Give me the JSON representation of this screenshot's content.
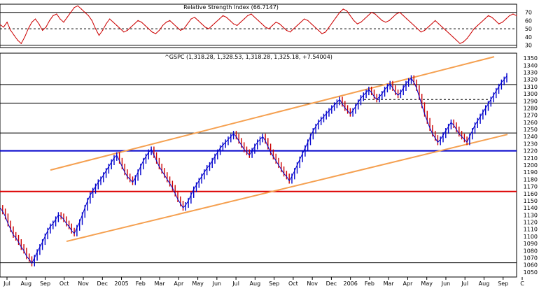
{
  "chart_data": [
    {
      "type": "line",
      "title": "Relative Strength Index (66.7147)",
      "y_ticks": [
        30,
        40,
        50,
        60,
        70
      ],
      "ylim": [
        27,
        80
      ],
      "reference_lines": {
        "upper": 70,
        "middle": 50,
        "lower": 30
      },
      "colors": {
        "series": "#cc0000",
        "reference": "#000000"
      },
      "series": [
        {
          "values": [
            55,
            52,
            58,
            48,
            42,
            36,
            32,
            40,
            50,
            58,
            62,
            56,
            48,
            52,
            60,
            66,
            68,
            62,
            58,
            64,
            70,
            76,
            78,
            74,
            70,
            66,
            60,
            50,
            42,
            48,
            56,
            62,
            58,
            54,
            50,
            46,
            48,
            52,
            56,
            60,
            58,
            54,
            50,
            46,
            44,
            48,
            54,
            58,
            60,
            56,
            52,
            48,
            50,
            56,
            62,
            64,
            60,
            56,
            52,
            50,
            54,
            58,
            62,
            66,
            64,
            60,
            56,
            54,
            58,
            62,
            66,
            68,
            64,
            60,
            56,
            52,
            50,
            54,
            58,
            56,
            52,
            48,
            46,
            50,
            54,
            58,
            62,
            60,
            56,
            52,
            48,
            44,
            46,
            52,
            58,
            64,
            70,
            74,
            72,
            66,
            60,
            56,
            58,
            62,
            66,
            70,
            68,
            64,
            60,
            58,
            60,
            64,
            68,
            70,
            66,
            62,
            58,
            54,
            50,
            46,
            48,
            52,
            56,
            60,
            56,
            52,
            48,
            44,
            40,
            36,
            32,
            34,
            38,
            44,
            50,
            54,
            58,
            62,
            66,
            64,
            60,
            56,
            58,
            62,
            66,
            68,
            66
          ]
        }
      ]
    },
    {
      "type": "line",
      "title": "^GSPC (1,318.28, 1,328.53, 1,318.28, 1,325.18, +7.54004)",
      "y_ticks": [
        1050,
        1060,
        1070,
        1080,
        1090,
        1100,
        1110,
        1120,
        1130,
        1140,
        1150,
        1160,
        1170,
        1180,
        1190,
        1200,
        1210,
        1220,
        1230,
        1240,
        1250,
        1260,
        1270,
        1280,
        1290,
        1300,
        1310,
        1320,
        1330,
        1340,
        1350
      ],
      "ylim": [
        1043,
        1357
      ],
      "x_ticks": [
        "Jul",
        "Aug",
        "Sep",
        "Oct",
        "Nov",
        "Dec",
        "2005",
        "Feb",
        "Mar",
        "Apr",
        "May",
        "Jun",
        "Jul",
        "Aug",
        "Sep",
        "Oct",
        "Nov",
        "Dec",
        "2006",
        "Feb",
        "Mar",
        "Apr",
        "May",
        "Jun",
        "Jul",
        "Aug",
        "Sep",
        "C"
      ],
      "colors": {
        "price": "#0000cc",
        "down": "#cc0000",
        "trend": "#f5a050",
        "support": "#0000cc",
        "red_line": "#dd0000",
        "grid": "#000000"
      },
      "horizontal_lines": {
        "black": [
          1313,
          1287,
          1245,
          1063
        ],
        "blue": 1220,
        "red": 1163,
        "dashed": 1292
      },
      "trend_lines": [
        {
          "from": [
            "Sep",
            1193
          ],
          "to": [
            "Sep",
            1352
          ]
        },
        {
          "from": [
            "Sep",
            1093
          ],
          "to": [
            "Sep",
            1243
          ]
        }
      ],
      "series": [
        {
          "values": [
            1140,
            1135,
            1128,
            1118,
            1110,
            1102,
            1098,
            1092,
            1085,
            1080,
            1072,
            1068,
            1062,
            1070,
            1078,
            1085,
            1092,
            1100,
            1108,
            1114,
            1118,
            1124,
            1130,
            1128,
            1124,
            1118,
            1114,
            1108,
            1104,
            1112,
            1120,
            1130,
            1140,
            1150,
            1158,
            1164,
            1170,
            1176,
            1180,
            1186,
            1192,
            1198,
            1204,
            1210,
            1214,
            1206,
            1198,
            1190,
            1184,
            1180,
            1176,
            1182,
            1190,
            1198,
            1206,
            1212,
            1218,
            1222,
            1214,
            1206,
            1198,
            1192,
            1186,
            1180,
            1174,
            1168,
            1160,
            1152,
            1146,
            1140,
            1144,
            1150,
            1158,
            1166,
            1172,
            1178,
            1184,
            1190,
            1196,
            1200,
            1206,
            1212,
            1218,
            1224,
            1228,
            1232,
            1236,
            1240,
            1244,
            1240,
            1234,
            1228,
            1222,
            1218,
            1214,
            1220,
            1226,
            1232,
            1236,
            1240,
            1234,
            1226,
            1218,
            1212,
            1206,
            1200,
            1194,
            1188,
            1184,
            1178,
            1184,
            1192,
            1200,
            1208,
            1216,
            1224,
            1232,
            1240,
            1248,
            1254,
            1260,
            1264,
            1268,
            1272,
            1276,
            1280,
            1284,
            1288,
            1292,
            1286,
            1280,
            1276,
            1272,
            1276,
            1282,
            1288,
            1294,
            1298,
            1302,
            1306,
            1302,
            1296,
            1292,
            1296,
            1300,
            1306,
            1310,
            1314,
            1308,
            1302,
            1298,
            1302,
            1308,
            1314,
            1318,
            1322,
            1316,
            1308,
            1296,
            1284,
            1272,
            1262,
            1252,
            1244,
            1238,
            1232,
            1236,
            1242,
            1248,
            1254,
            1260,
            1256,
            1250,
            1244,
            1240,
            1236,
            1232,
            1240,
            1248,
            1256,
            1262,
            1268,
            1274,
            1280,
            1286,
            1292,
            1298,
            1304,
            1310,
            1316,
            1320,
            1325
          ]
        }
      ]
    }
  ]
}
